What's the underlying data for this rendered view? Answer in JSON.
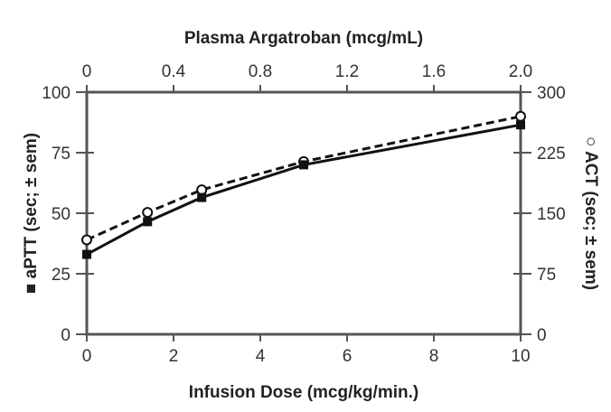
{
  "chart_data": {
    "type": "line",
    "title": "",
    "xlabel": "Infusion Dose (mcg/kg/min.)",
    "x2label": "Plasma Argatroban (mcg/mL)",
    "ylabel": "aPTT (sec; ± sem)",
    "y2label": "ACT (sec; ± sem)",
    "ylabel_marker": "■",
    "y2label_marker": "○",
    "xlim": [
      0,
      10
    ],
    "x2lim": [
      0,
      2.0
    ],
    "ylim": [
      0,
      100
    ],
    "y2lim": [
      0,
      300
    ],
    "xticks": [
      "0",
      "2",
      "4",
      "6",
      "8",
      "10"
    ],
    "x2ticks": [
      "0",
      "0.4",
      "0.8",
      "1.2",
      "1.6",
      "2.0"
    ],
    "yticks": [
      "0",
      "25",
      "50",
      "75",
      "100"
    ],
    "y2ticks": [
      "0",
      "75",
      "150",
      "225",
      "300"
    ],
    "grid": false,
    "series": [
      {
        "name": "aPTT",
        "axis": "left",
        "marker": "filled-square",
        "line": "solid",
        "x": [
          0,
          1.4,
          2.65,
          5,
          10
        ],
        "y": [
          33,
          46.5,
          56.5,
          70,
          86.5
        ]
      },
      {
        "name": "ACT",
        "axis": "right",
        "marker": "open-circle",
        "line": "dashed",
        "x": [
          0,
          1.4,
          2.65,
          5,
          10
        ],
        "y": [
          117,
          151,
          179,
          214,
          270
        ]
      }
    ]
  }
}
